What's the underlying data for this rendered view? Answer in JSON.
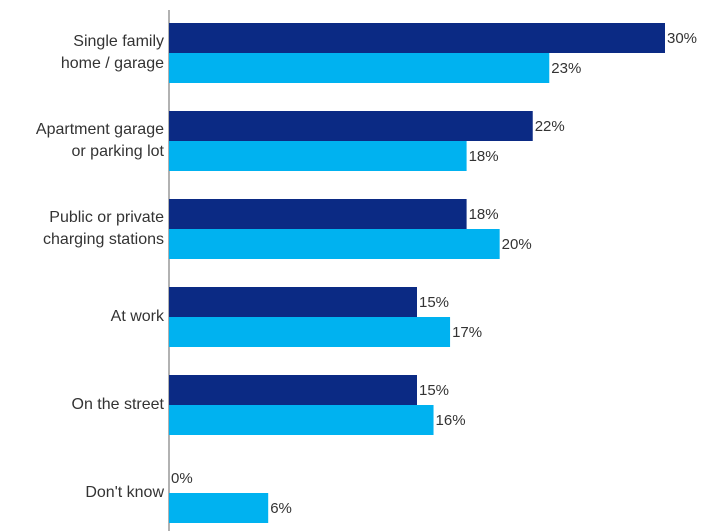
{
  "chart_data": {
    "type": "bar",
    "orientation": "horizontal",
    "categories": [
      "Single family\nhome / garage",
      "Apartment garage\nor parking lot",
      "Public or private\ncharging stations",
      "At work",
      "On the street",
      "Don't know"
    ],
    "series": [
      {
        "color": "#0b2a84",
        "values": [
          30,
          22,
          18,
          15,
          15,
          0
        ],
        "value_labels": [
          "30%",
          "22%",
          "18%",
          "15%",
          "15%",
          "0%"
        ]
      },
      {
        "color": "#00b2f0",
        "values": [
          23,
          18,
          20,
          17,
          16,
          6
        ],
        "value_labels": [
          "23%",
          "18%",
          "20%",
          "17%",
          "16%",
          "6%"
        ]
      }
    ]
  }
}
